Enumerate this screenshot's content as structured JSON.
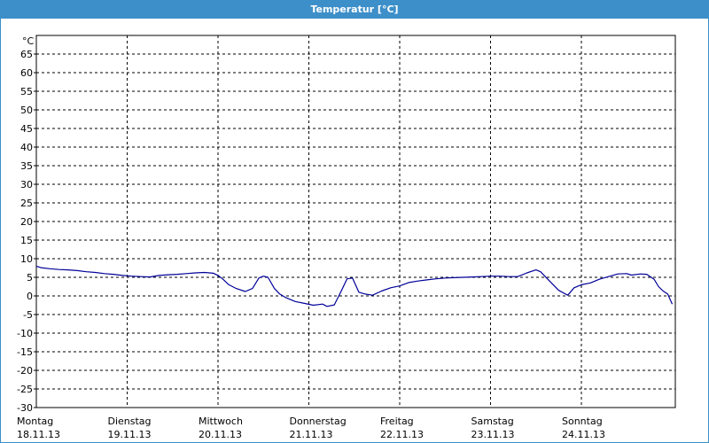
{
  "window": {
    "title": "Temperatur [°C]",
    "accent_color": "#3d8fc9"
  },
  "chart_data": {
    "type": "line",
    "title": "Temperatur [°C]",
    "y_unit_label": "°C",
    "xlabel": "",
    "ylabel": "°C",
    "ylim": [
      -30,
      67
    ],
    "yticks": [
      65,
      60,
      55,
      50,
      45,
      40,
      35,
      30,
      25,
      20,
      15,
      10,
      5,
      0,
      -5,
      -10,
      -15,
      -20,
      -25,
      -30
    ],
    "x_range_days": [
      0,
      7
    ],
    "grid": true,
    "legend": "none",
    "line_color": "#000099",
    "days": [
      {
        "name": "Montag",
        "date": "18.11.13"
      },
      {
        "name": "Dienstag",
        "date": "19.11.13"
      },
      {
        "name": "Mittwoch",
        "date": "20.11.13"
      },
      {
        "name": "Donnerstag",
        "date": "21.11.13"
      },
      {
        "name": "Freitag",
        "date": "22.11.13"
      },
      {
        "name": "Samstag",
        "date": "23.11.13"
      },
      {
        "name": "Sonntag",
        "date": "24.11.13"
      }
    ],
    "series": [
      {
        "x": [
          0,
          0.05,
          0.15,
          0.25,
          0.35,
          0.45,
          0.55,
          0.65,
          0.75,
          0.85,
          0.95,
          1.05,
          1.15,
          1.25,
          1.35,
          1.45,
          1.55,
          1.65,
          1.75,
          1.85,
          1.95,
          2.0,
          2.05,
          2.12,
          2.2,
          2.3,
          2.38,
          2.45,
          2.5,
          2.55,
          2.62,
          2.68,
          2.75,
          2.85,
          2.95,
          3.05,
          3.15,
          3.2,
          3.28,
          3.35,
          3.42,
          3.48,
          3.55,
          3.62,
          3.7,
          3.8,
          3.9,
          4.0,
          4.1,
          4.2,
          4.3,
          4.4,
          4.5,
          4.6,
          4.7,
          4.8,
          4.9,
          5.0,
          5.1,
          5.2,
          5.3,
          5.4,
          5.5,
          5.55,
          5.65,
          5.75,
          5.85,
          5.92,
          6.0,
          6.1,
          6.2,
          6.3,
          6.4,
          6.5,
          6.55,
          6.65,
          6.72,
          6.8,
          6.85,
          6.9,
          6.95,
          7.0
        ],
        "y": [
          8,
          7.6,
          7.3,
          7.1,
          7.0,
          6.8,
          6.5,
          6.3,
          6.0,
          5.8,
          5.5,
          5.3,
          5.2,
          5.1,
          5.5,
          5.7,
          5.8,
          6.0,
          6.2,
          6.3,
          6.1,
          5.5,
          4.6,
          3.0,
          2.0,
          1.2,
          2.0,
          4.8,
          5.3,
          5.0,
          2.0,
          0.5,
          -0.5,
          -1.5,
          -2.0,
          -2.5,
          -2.2,
          -2.8,
          -2.4,
          1.0,
          4.6,
          4.8,
          1.0,
          0.5,
          0.2,
          1.3,
          2.2,
          2.7,
          3.6,
          4.0,
          4.3,
          4.6,
          4.8,
          4.9,
          5.0,
          5.1,
          5.2,
          5.3,
          5.3,
          5.2,
          5.2,
          6.2,
          7.0,
          6.5,
          4.0,
          1.5,
          0.2,
          2.2,
          3.0,
          3.5,
          4.5,
          5.2,
          5.9,
          6.0,
          5.6,
          5.9,
          5.8,
          4.5,
          2.5,
          1.3,
          0.5,
          -2.2
        ]
      }
    ]
  }
}
